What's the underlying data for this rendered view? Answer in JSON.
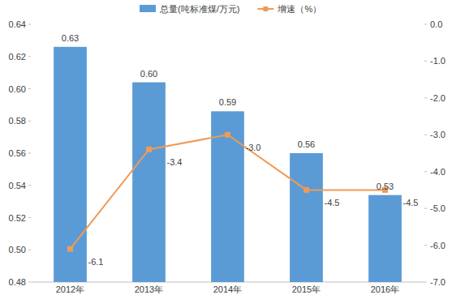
{
  "chart_data": {
    "type": "bar",
    "categories": [
      "2012年",
      "2013年",
      "2014年",
      "2015年",
      "2016年"
    ],
    "series": [
      {
        "name": "总量(吨标准煤/万元)",
        "type": "bar",
        "color": "#5b9bd5",
        "values": [
          0.626,
          0.604,
          0.586,
          0.56,
          0.534
        ],
        "value_labels": [
          "0.63",
          "0.60",
          "0.59",
          "0.56",
          "0.53"
        ]
      },
      {
        "name": "增速（%）",
        "type": "line",
        "axis": "y2",
        "color": "#ee9a58",
        "marker": "square",
        "values": [
          -6.1,
          -3.4,
          -3.0,
          -4.5,
          -4.5
        ],
        "value_labels": [
          "-6.1",
          "-3.4",
          "-3.0",
          "-4.5",
          "-4.5"
        ]
      }
    ],
    "ylim": [
      0.48,
      0.64
    ],
    "yticks": [
      {
        "value": 0.48,
        "label": "0.48"
      },
      {
        "value": 0.5,
        "label": "0.50"
      },
      {
        "value": 0.52,
        "label": "0.52"
      },
      {
        "value": 0.54,
        "label": "0.54"
      },
      {
        "value": 0.56,
        "label": "0.56"
      },
      {
        "value": 0.58,
        "label": "0.58"
      },
      {
        "value": 0.6,
        "label": "0.60"
      },
      {
        "value": 0.62,
        "label": "0.62"
      },
      {
        "value": 0.64,
        "label": "0.64"
      }
    ],
    "y2lim": [
      -7,
      0
    ],
    "y2ticks": [
      {
        "value": 0,
        "label": "0.0"
      },
      {
        "value": -1,
        "label": "-1.0"
      },
      {
        "value": -2,
        "label": "-2.0"
      },
      {
        "value": -3,
        "label": "-3.0"
      },
      {
        "value": -4,
        "label": "-4.0"
      },
      {
        "value": -5,
        "label": "-5.0"
      },
      {
        "value": -6,
        "label": "-6.0"
      },
      {
        "value": -7,
        "label": "-7.0"
      }
    ],
    "data_labels": true,
    "legend": "top",
    "grid": false
  }
}
